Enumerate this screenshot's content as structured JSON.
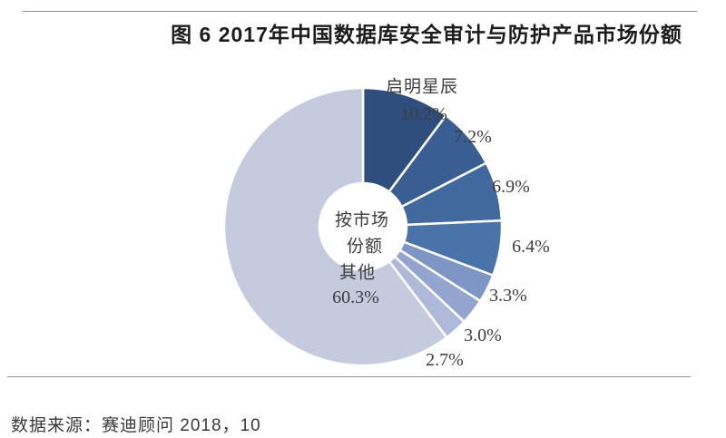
{
  "page": {
    "figure_title": "图 6  2017年中国数据库安全审计与防护产品市场份额",
    "source_note": "数据来源：赛迪顾问  2018，10"
  },
  "chart_data": {
    "type": "pie",
    "subtype": "donut",
    "title": "2017年中国数据库安全审计与防护产品市场份额",
    "unit": "percent",
    "direction": "clockwise",
    "start_angle": "12-oclock",
    "center_label": [
      "按市场",
      "份额"
    ],
    "segments": [
      {
        "label": "启明星辰",
        "value": 10.2,
        "display": "10.2%",
        "color": "#2f4e7d"
      },
      {
        "label": "",
        "value": 7.2,
        "display": "7.2%",
        "color": "#3a5e92"
      },
      {
        "label": "",
        "value": 6.9,
        "display": "6.9%",
        "color": "#41699e"
      },
      {
        "label": "",
        "value": 6.4,
        "display": "6.4%",
        "color": "#4a74a9"
      },
      {
        "label": "",
        "value": 3.3,
        "display": "3.3%",
        "color": "#7d96c4"
      },
      {
        "label": "",
        "value": 3.0,
        "display": "3.0%",
        "color": "#93a4cf"
      },
      {
        "label": "",
        "value": 2.7,
        "display": "2.7%",
        "color": "#aeb9d9"
      },
      {
        "label": "其他",
        "value": 60.3,
        "display": "60.3%",
        "color": "#c6cade"
      }
    ]
  }
}
